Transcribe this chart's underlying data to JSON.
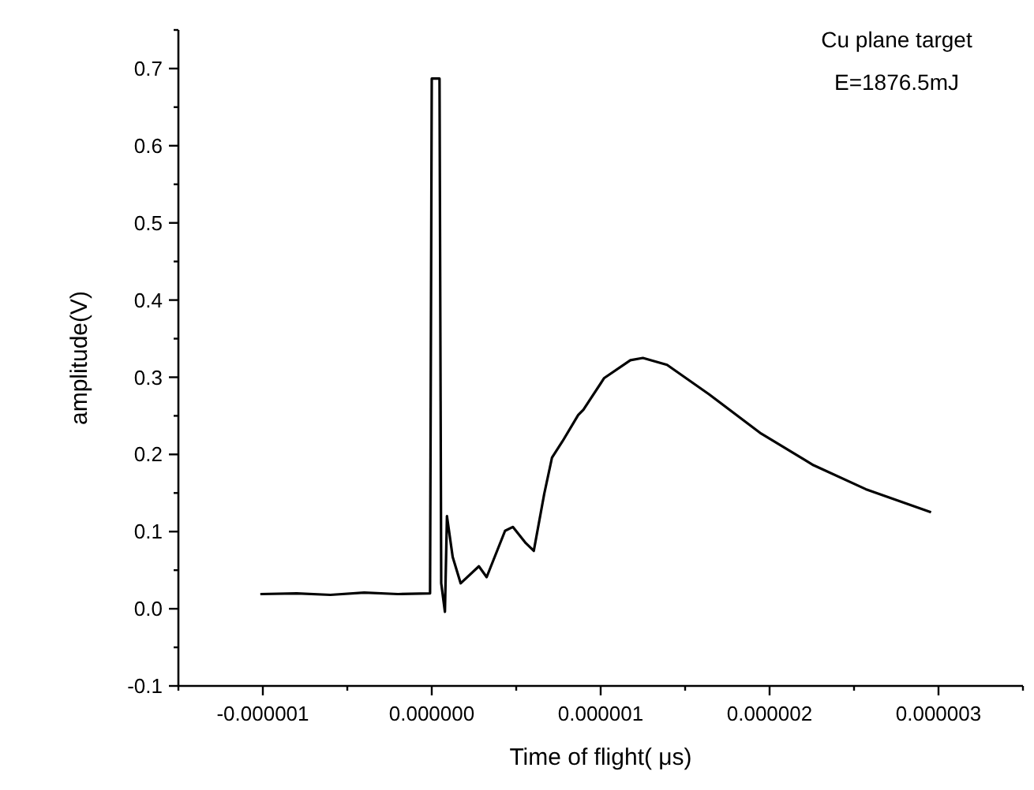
{
  "chart_data": {
    "type": "line",
    "xlabel": "Time of flight( μs)",
    "ylabel": "amplitude(V)",
    "annotations": [
      "Cu plane target",
      "E=1876.5mJ"
    ],
    "xlim": [
      -1.5e-06,
      3.5e-06
    ],
    "ylim": [
      -0.1,
      0.75
    ],
    "xticks": [
      {
        "value": -1.5e-06,
        "label": null
      },
      {
        "value": -1e-06,
        "label": "-0.000001"
      },
      {
        "value": -5e-07,
        "label": null
      },
      {
        "value": 0,
        "label": "0.000000"
      },
      {
        "value": 5e-07,
        "label": null
      },
      {
        "value": 1e-06,
        "label": "0.000001"
      },
      {
        "value": 1.5e-06,
        "label": null
      },
      {
        "value": 2e-06,
        "label": "0.000002"
      },
      {
        "value": 2.5e-06,
        "label": null
      },
      {
        "value": 3e-06,
        "label": "0.000003"
      },
      {
        "value": 3.5e-06,
        "label": null
      }
    ],
    "yticks": [
      {
        "value": -0.1,
        "label": "-0.1"
      },
      {
        "value": -0.05,
        "label": null
      },
      {
        "value": 0,
        "label": "0.0"
      },
      {
        "value": 0.05,
        "label": null
      },
      {
        "value": 0.1,
        "label": "0.1"
      },
      {
        "value": 0.15,
        "label": null
      },
      {
        "value": 0.2,
        "label": "0.2"
      },
      {
        "value": 0.25,
        "label": null
      },
      {
        "value": 0.3,
        "label": "0.3"
      },
      {
        "value": 0.35,
        "label": null
      },
      {
        "value": 0.4,
        "label": "0.4"
      },
      {
        "value": 0.45,
        "label": null
      },
      {
        "value": 0.5,
        "label": "0.5"
      },
      {
        "value": 0.55,
        "label": null
      },
      {
        "value": 0.6,
        "label": "0.6"
      },
      {
        "value": 0.65,
        "label": null
      },
      {
        "value": 0.7,
        "label": "0.7"
      },
      {
        "value": 0.75,
        "label": null
      }
    ],
    "grid": false,
    "marker": "none",
    "line_style": "solid",
    "series": [
      {
        "color": "#000000",
        "x": [
          -1.015e-06,
          -8e-07,
          -6e-07,
          -4e-07,
          -2e-07,
          -1e-08,
          0,
          4.6e-08,
          5.6e-08,
          7.8e-08,
          9e-08,
          1.24e-07,
          1.71e-07,
          2.79e-07,
          3.25e-07,
          4.34e-07,
          4.8e-07,
          5.57e-07,
          6.04e-07,
          6.66e-07,
          7.12e-07,
          7.74e-07,
          8.67e-07,
          8.98e-07,
          1.021e-06,
          1.176e-06,
          1.25e-06,
          1.393e-06,
          1.641e-06,
          1.95e-06,
          2.26e-06,
          2.569e-06,
          2.956e-06
        ],
        "values": [
          0.019,
          0.02,
          0.018,
          0.021,
          0.019,
          0.02,
          0.687,
          0.687,
          0.033,
          -0.004,
          0.12,
          0.067,
          0.033,
          0.055,
          0.041,
          0.101,
          0.106,
          0.085,
          0.075,
          0.149,
          0.196,
          0.217,
          0.251,
          0.258,
          0.299,
          0.322,
          0.325,
          0.316,
          0.278,
          0.227,
          0.186,
          0.155,
          0.125
        ]
      }
    ]
  }
}
